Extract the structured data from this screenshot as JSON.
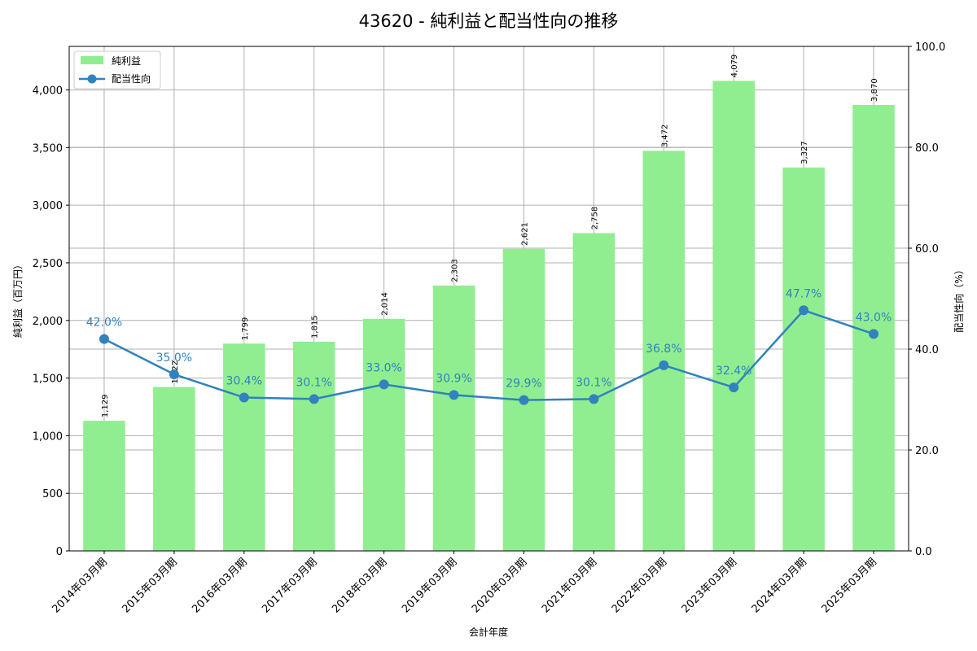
{
  "chart_data": {
    "type": "bar+line",
    "title": "43620 - 純利益と配当性向の推移",
    "xlabel": "会計年度",
    "ylabel": "純利益（百万円）",
    "ylabel_right": "配当性向（%）",
    "categories": [
      "2014年03月期",
      "2015年03月期",
      "2016年03月期",
      "2017年03月期",
      "2018年03月期",
      "2019年03月期",
      "2020年03月期",
      "2021年03月期",
      "2022年03月期",
      "2023年03月期",
      "2024年03月期",
      "2025年03月期"
    ],
    "series": [
      {
        "name": "純利益",
        "type": "bar",
        "axis": "left",
        "color": "#90ee90",
        "values": [
          1129,
          1422,
          1799,
          1815,
          2014,
          2303,
          2621,
          2758,
          3472,
          4079,
          3327,
          3870
        ],
        "labels": [
          "1,129",
          "1,422",
          "1,799",
          "1,815",
          "2,014",
          "2,303",
          "2,621",
          "2,758",
          "3,472",
          "4,079",
          "3,327",
          "3,870"
        ]
      },
      {
        "name": "配当性向",
        "type": "line",
        "axis": "right",
        "color": "#3182bd",
        "values": [
          42.0,
          35.0,
          30.4,
          30.1,
          33.0,
          30.9,
          29.9,
          30.1,
          36.8,
          32.4,
          47.7,
          43.0
        ],
        "labels": [
          "42.0%",
          "35.0%",
          "30.4%",
          "30.1%",
          "33.0%",
          "30.9%",
          "29.9%",
          "30.1%",
          "36.8%",
          "32.4%",
          "47.7%",
          "43.0%"
        ]
      }
    ],
    "ylim": [
      0,
      4378
    ],
    "ylim_right": [
      0,
      100
    ],
    "yticks": [
      0,
      500,
      1000,
      1500,
      2000,
      2500,
      3000,
      3500,
      4000
    ],
    "ytick_labels": [
      "0",
      "500",
      "1,000",
      "1,500",
      "2,000",
      "2,500",
      "3,000",
      "3,500",
      "4,000"
    ],
    "yticks_right": [
      0,
      20,
      40,
      60,
      80,
      100
    ],
    "ytick_labels_right": [
      "0.0",
      "20.0",
      "40.0",
      "60.0",
      "80.0",
      "100.0"
    ],
    "grid": true,
    "legend_position": "upper left"
  }
}
